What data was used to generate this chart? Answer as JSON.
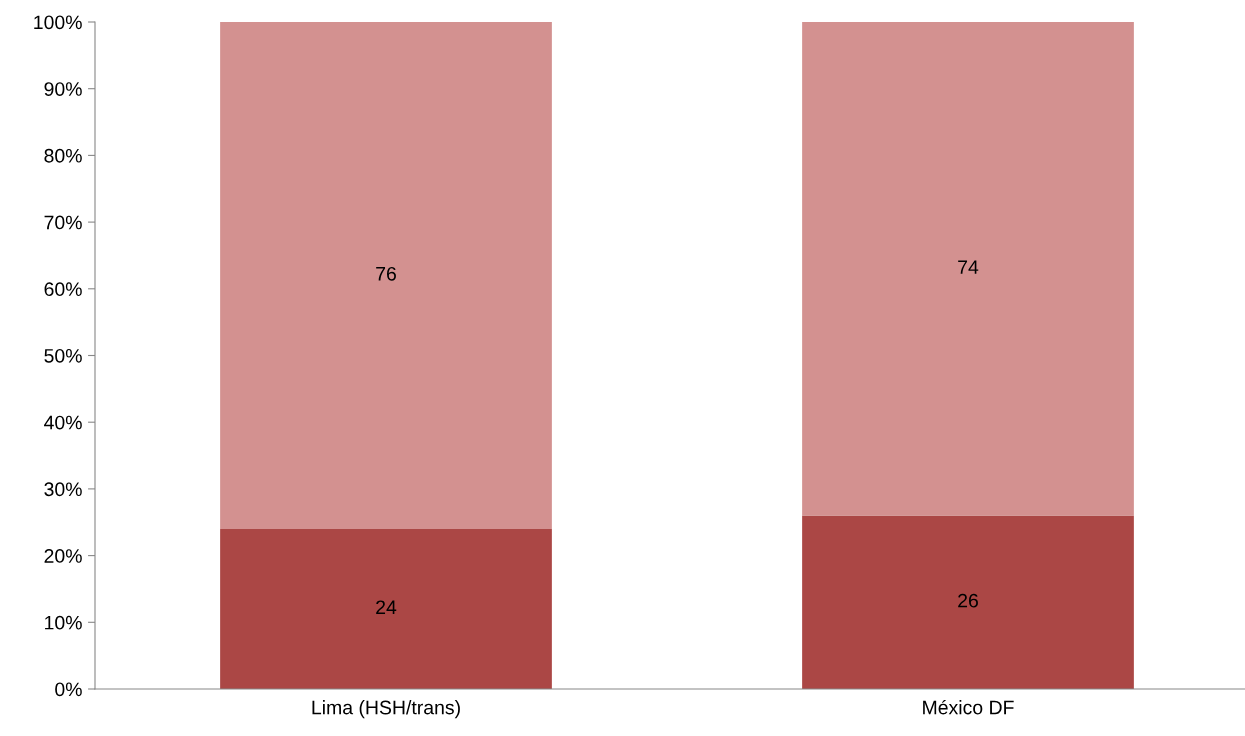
{
  "chart_data": {
    "type": "bar",
    "stacked": true,
    "categories": [
      "Lima (HSH/trans)",
      "México DF"
    ],
    "series": [
      {
        "color": "#ab4745",
        "values": [
          24,
          26
        ]
      },
      {
        "color": "#d39190",
        "values": [
          76,
          74
        ]
      }
    ],
    "ylim": [
      0,
      100
    ],
    "yticks": [
      {
        "value": 0,
        "label": "0%"
      },
      {
        "value": 10,
        "label": "10%"
      },
      {
        "value": 20,
        "label": "20%"
      },
      {
        "value": 30,
        "label": "30%"
      },
      {
        "value": 40,
        "label": "40%"
      },
      {
        "value": 50,
        "label": "50%"
      },
      {
        "value": 60,
        "label": "60%"
      },
      {
        "value": 70,
        "label": "70%"
      },
      {
        "value": 80,
        "label": "80%"
      },
      {
        "value": 90,
        "label": "90%"
      },
      {
        "value": 100,
        "label": "100%"
      }
    ],
    "data_labels": true,
    "grid": false
  }
}
